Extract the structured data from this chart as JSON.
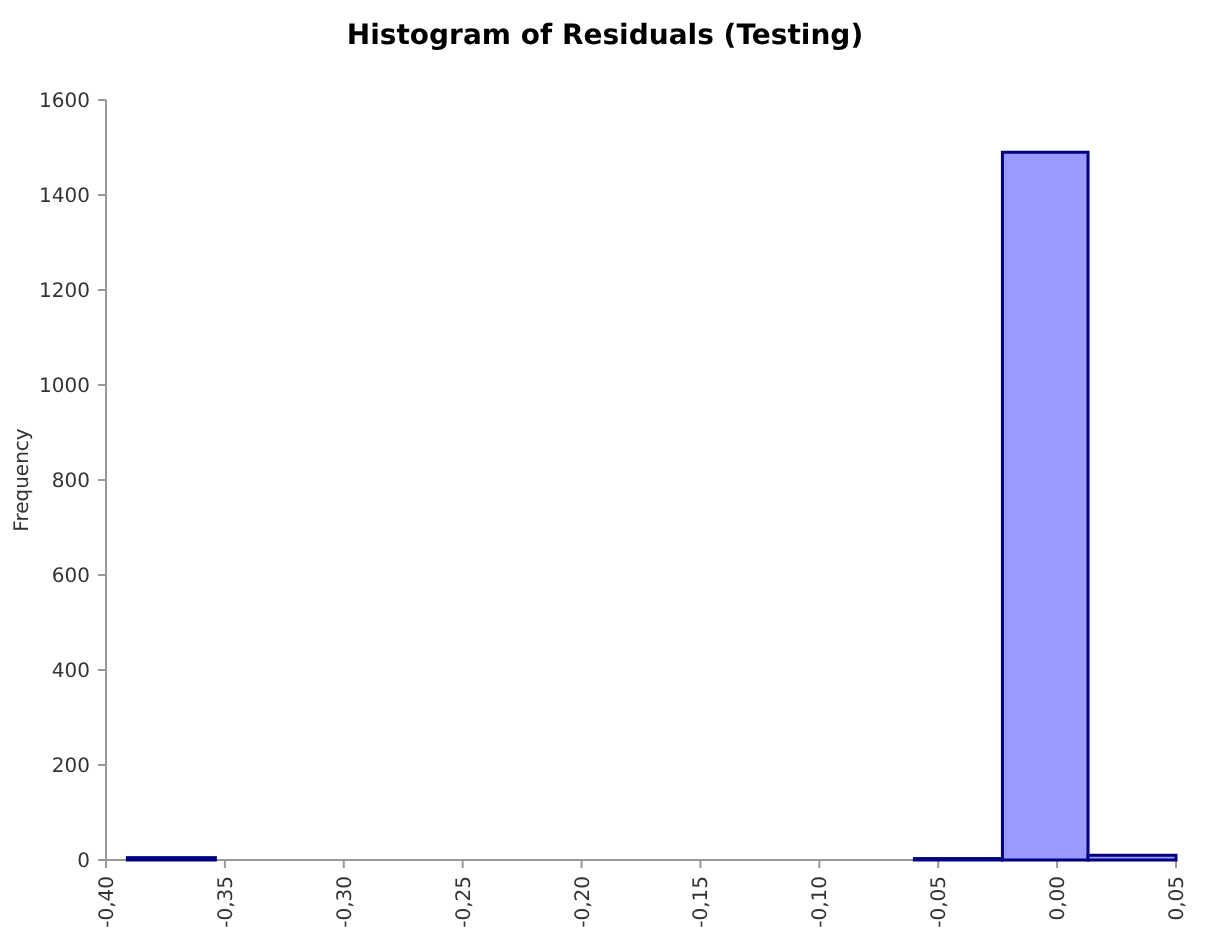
{
  "chart_data": {
    "type": "histogram",
    "title": "Histogram of Residuals (Testing)",
    "ylabel": "Frequency",
    "bins": [
      -0.391,
      -0.354,
      -0.06,
      -0.023,
      0.013,
      0.05
    ],
    "values": [
      5,
      0,
      3,
      1490,
      10
    ],
    "color": "#9999ff",
    "xlim": [
      -0.4,
      0.05
    ],
    "xticks": [
      {
        "value": -0.4,
        "label": "-0,40"
      },
      {
        "value": -0.35,
        "label": "-0,35"
      },
      {
        "value": -0.3,
        "label": "-0,30"
      },
      {
        "value": -0.25,
        "label": "-0,25"
      },
      {
        "value": -0.2,
        "label": "-0,20"
      },
      {
        "value": -0.15,
        "label": "-0,15"
      },
      {
        "value": -0.1,
        "label": "-0,10"
      },
      {
        "value": -0.05,
        "label": "-0,05"
      },
      {
        "value": 0,
        "label": "0,00"
      },
      {
        "value": 0.05,
        "label": "0,05"
      }
    ],
    "ylim": [
      0,
      1600
    ],
    "yticks": [
      0,
      200,
      400,
      600,
      800,
      1000,
      1200,
      1400,
      1600
    ]
  }
}
